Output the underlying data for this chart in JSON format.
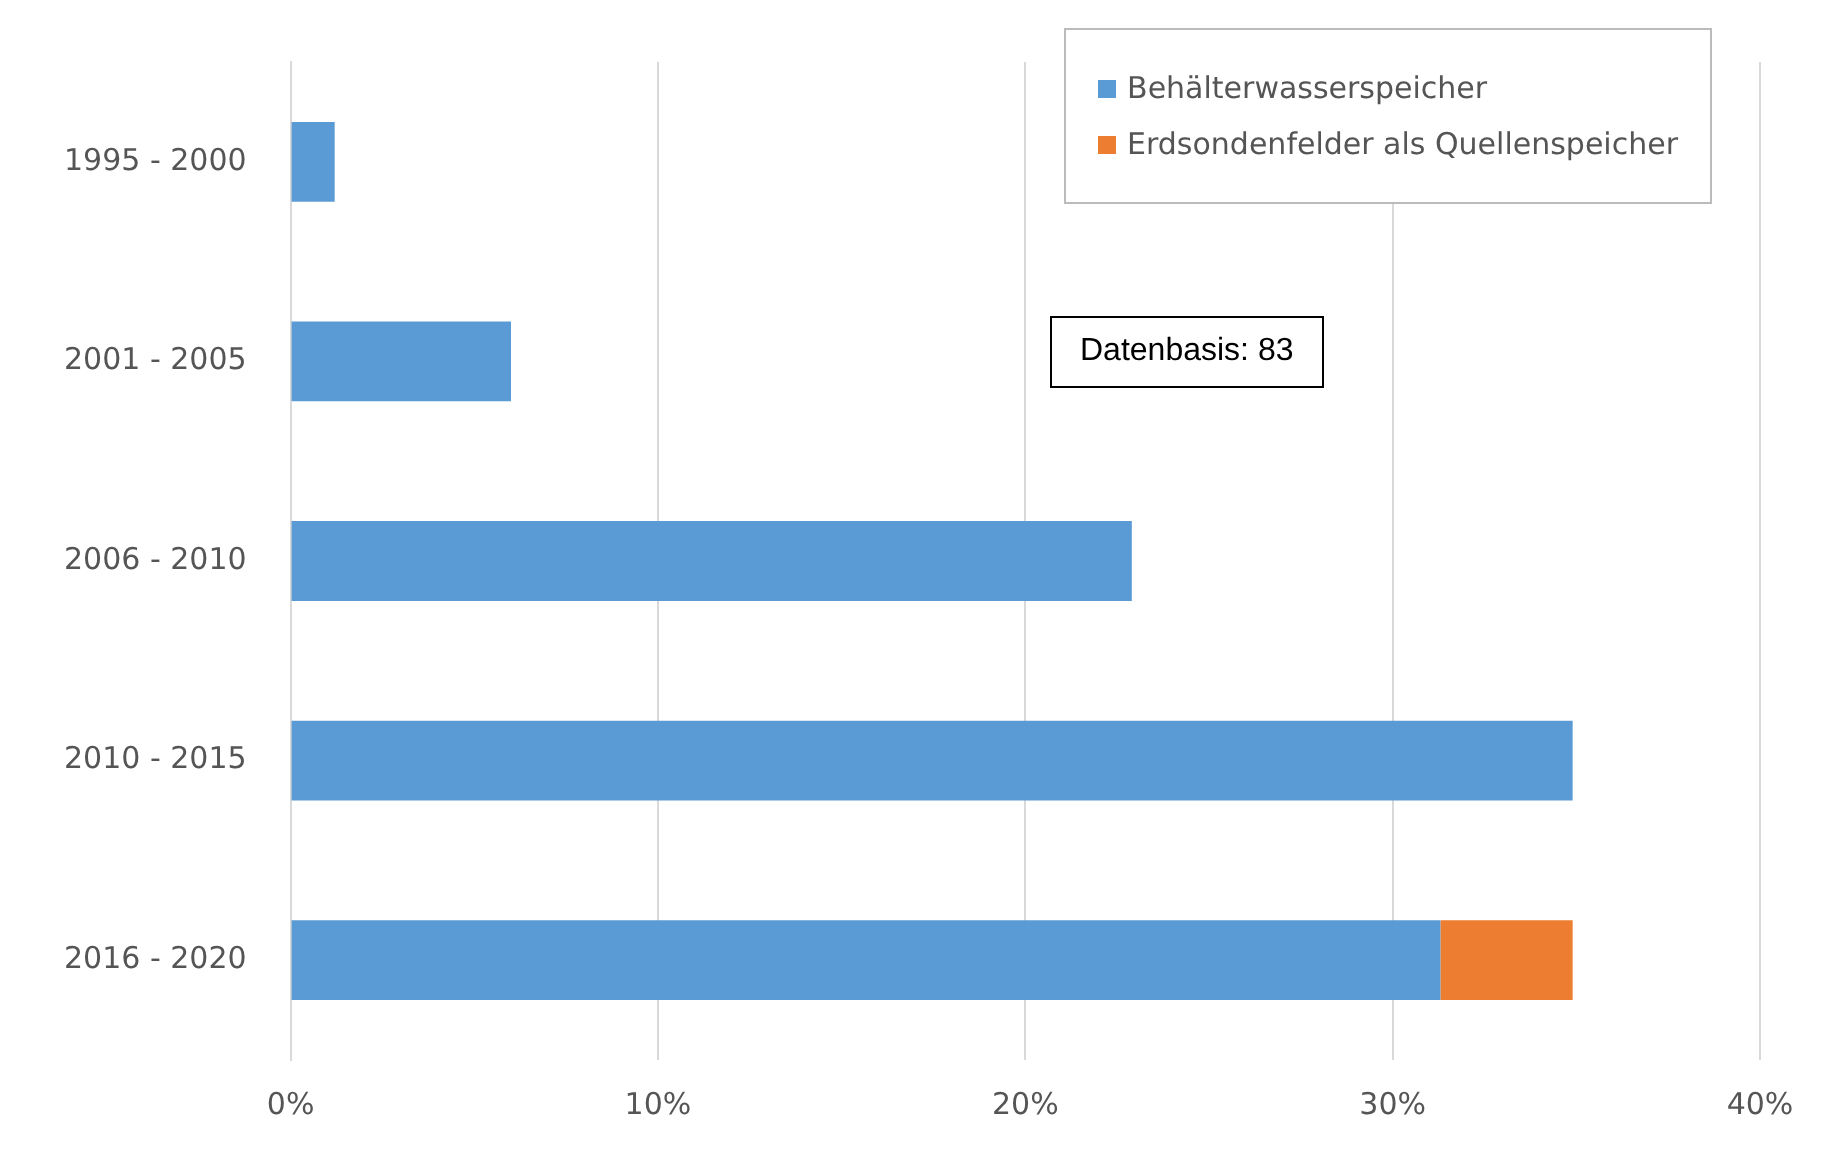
{
  "chart_data": {
    "type": "bar",
    "orientation": "horizontal",
    "stacked": true,
    "categories": [
      "1995 - 2000",
      "2001 - 2005",
      "2006 - 2010",
      "2010 - 2015",
      "2016 - 2020"
    ],
    "series": [
      {
        "name": "Behälterwasserspeicher",
        "color": "#5b9bd5",
        "values": [
          1.2,
          6.0,
          22.9,
          34.9,
          31.3
        ]
      },
      {
        "name": "Erdsondenfelder als Quellenspeicher",
        "color": "#ed7d31",
        "values": [
          null,
          null,
          null,
          null,
          3.6
        ]
      }
    ],
    "xlim": [
      0,
      40
    ],
    "xticks": [
      {
        "value": 0,
        "label": "0%"
      },
      {
        "value": 10,
        "label": "10%"
      },
      {
        "value": 20,
        "label": "20%"
      },
      {
        "value": 30,
        "label": "30%"
      },
      {
        "value": 40,
        "label": "40%"
      }
    ],
    "grid": "x",
    "legend": "top right",
    "annotations": [
      "Datenbasis: 83"
    ]
  }
}
